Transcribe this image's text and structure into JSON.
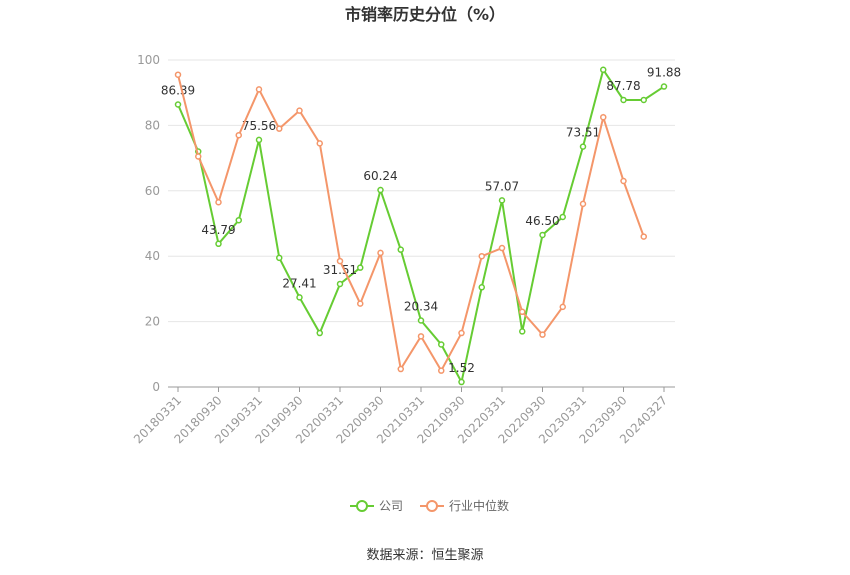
{
  "chart_data": {
    "type": "line",
    "title": "市销率历史分位（%）",
    "categories": [
      "20180331",
      null,
      "20180930",
      null,
      "20190331",
      null,
      "20190930",
      null,
      "20200331",
      null,
      "20200930",
      null,
      "20210331",
      null,
      "20210930",
      null,
      "20220331",
      null,
      "20220930",
      null,
      "20230331",
      null,
      "20230930",
      null,
      "20240327"
    ],
    "series": [
      {
        "name": "公司",
        "color": "#66cc33",
        "values": [
          86.39,
          72,
          43.79,
          51,
          75.56,
          39.5,
          27.41,
          16.5,
          31.51,
          36.5,
          60.24,
          42,
          20.34,
          13,
          1.52,
          30.5,
          57.07,
          17,
          46.5,
          52,
          73.51,
          97,
          87.78,
          87.78,
          91.88
        ],
        "value_labels": [
          "86.39",
          null,
          "43.79",
          null,
          "75.56",
          null,
          "27.41",
          null,
          "31.51",
          null,
          "60.24",
          null,
          "20.34",
          null,
          "1.52",
          null,
          "57.07",
          null,
          "46.50",
          null,
          "73.51",
          null,
          "87.78",
          null,
          "91.88"
        ]
      },
      {
        "name": "行业中位数",
        "color": "#f4966a",
        "values": [
          95.5,
          70.5,
          56.5,
          77,
          91,
          79,
          84.5,
          74.5,
          38.5,
          25.5,
          41,
          5.5,
          15.5,
          5,
          16.5,
          40,
          42.5,
          23,
          16,
          24.5,
          56,
          82.5,
          63,
          46,
          null
        ]
      }
    ],
    "ylim": [
      0,
      100
    ],
    "yticks": [
      0,
      20,
      40,
      60,
      80,
      100
    ],
    "grid": true,
    "legend": "bottom",
    "source": "数据来源：恒生聚源"
  }
}
